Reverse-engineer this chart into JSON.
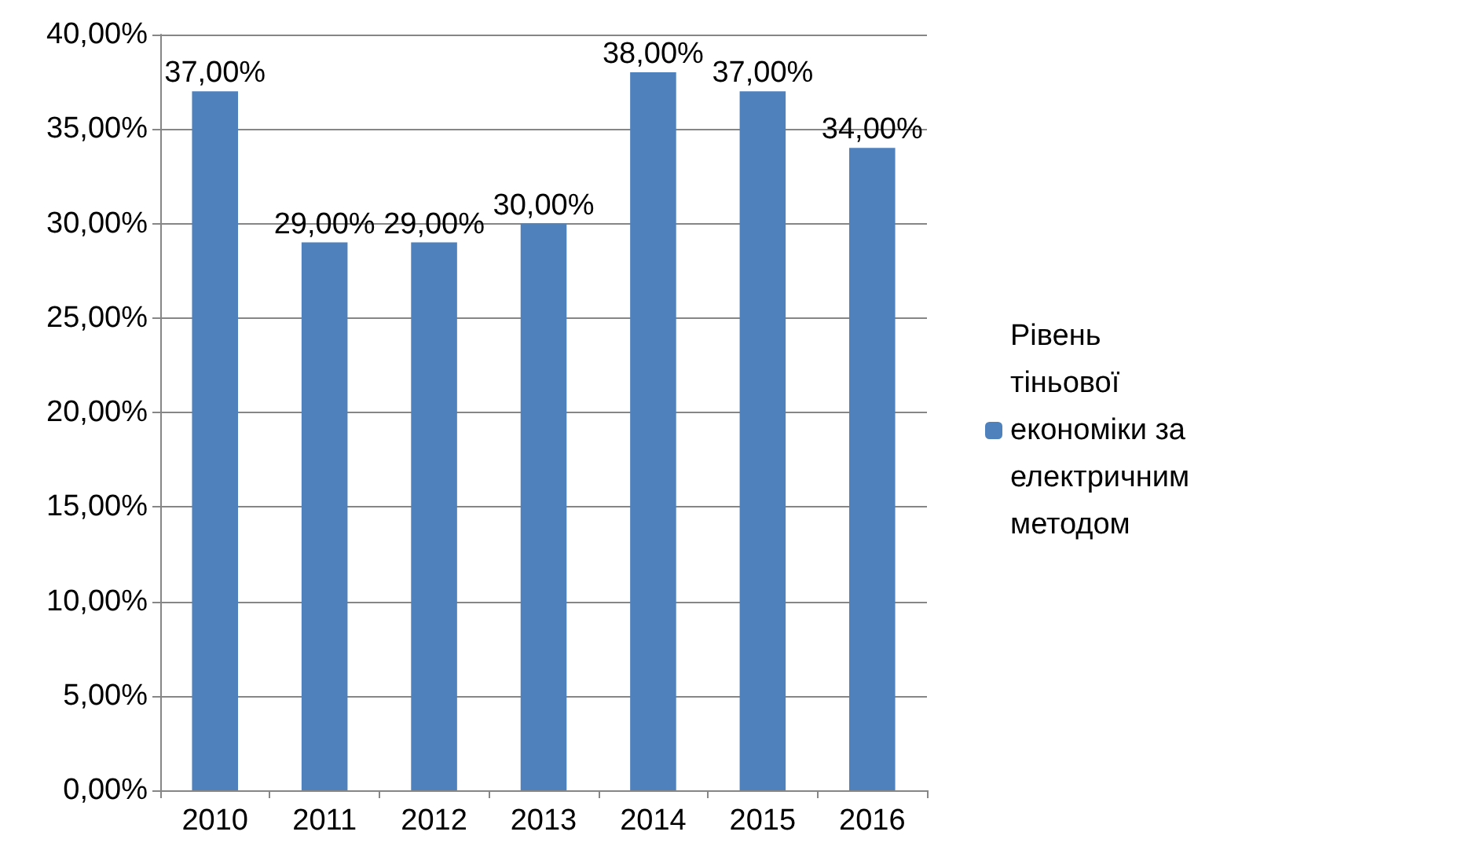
{
  "chart_data": {
    "type": "bar",
    "categories": [
      "2010",
      "2011",
      "2012",
      "2013",
      "2014",
      "2015",
      "2016"
    ],
    "series": [
      {
        "name": "Рівень тіньової економіки за електричним методом",
        "color": "#4f81bd",
        "values": [
          37,
          29,
          29,
          30,
          38,
          37,
          34
        ],
        "value_labels": [
          "37,00%",
          "29,00%",
          "29,00%",
          "30,00%",
          "38,00%",
          "37,00%",
          "34,00%"
        ]
      }
    ],
    "ylim": [
      0,
      40
    ],
    "yticks": [
      {
        "value": 0,
        "label": "0,00%"
      },
      {
        "value": 5,
        "label": "5,00%"
      },
      {
        "value": 10,
        "label": "10,00%"
      },
      {
        "value": 15,
        "label": "15,00%"
      },
      {
        "value": 20,
        "label": "20,00%"
      },
      {
        "value": 25,
        "label": "25,00%"
      },
      {
        "value": 30,
        "label": "30,00%"
      },
      {
        "value": 35,
        "label": "35,00%"
      },
      {
        "value": 40,
        "label": "40,00%"
      }
    ],
    "grid": "y",
    "legend": "right"
  }
}
